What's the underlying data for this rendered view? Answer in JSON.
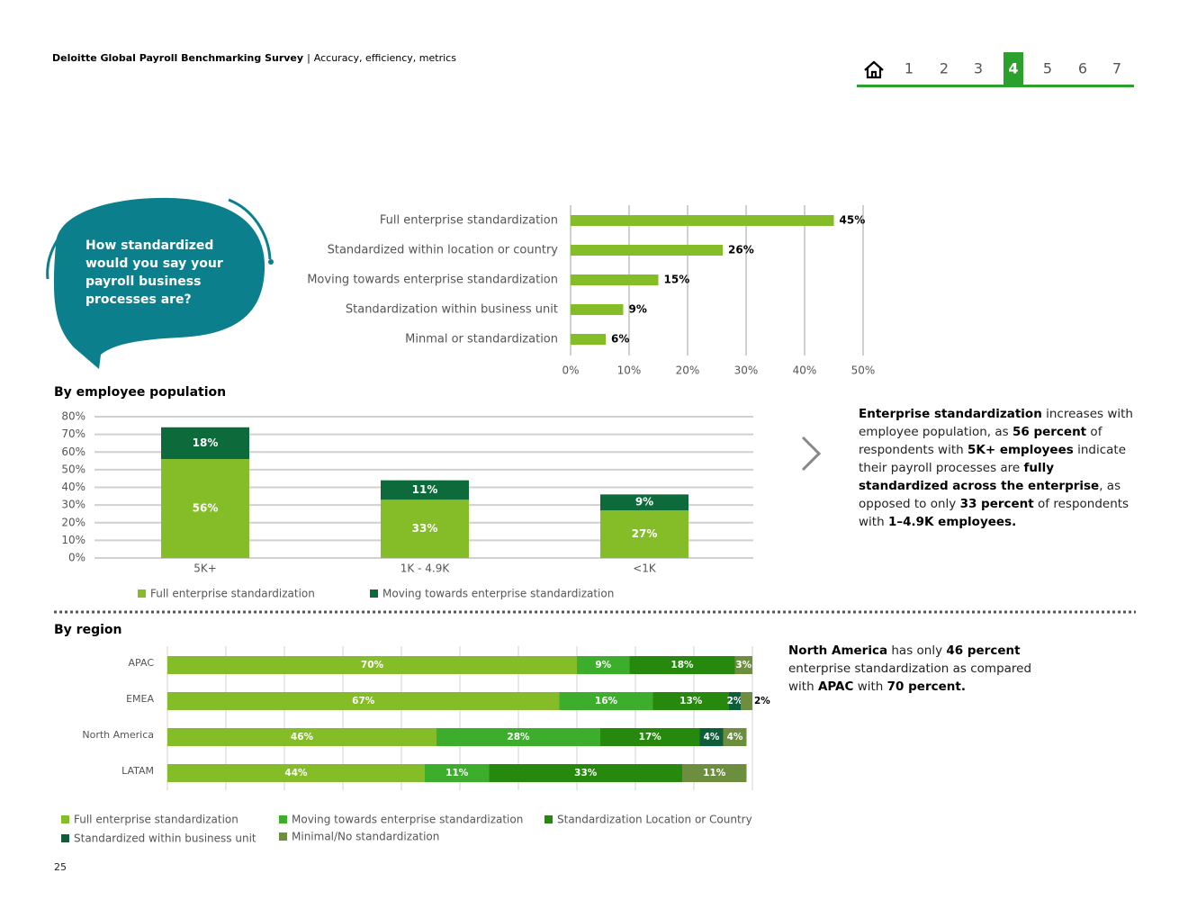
{
  "header": {
    "title": "Deloitte Global Payroll Benchmarking Survey",
    "separator": "|",
    "subtitle": "Accuracy, efficiency, metrics"
  },
  "nav": {
    "items": [
      "1",
      "2",
      "3",
      "4",
      "5",
      "6",
      "7"
    ],
    "active": "4"
  },
  "question": "How standardized would you say your payroll business processes are?",
  "chart_data": [
    {
      "type": "bar",
      "orientation": "horizontal",
      "categories": [
        "Full enterprise standardization",
        "Standardized within location or country",
        "Moving towards enterprise standardization",
        "Standardization within business unit",
        "Minmal or standardization"
      ],
      "values": [
        45,
        26,
        15,
        9,
        6
      ],
      "value_labels": [
        "45%",
        "26%",
        "15%",
        "9%",
        "6%"
      ],
      "color": "#84bd27",
      "xlim": [
        0,
        50
      ],
      "xticks": [
        {
          "value": 0,
          "label": "0%"
        },
        {
          "value": 10,
          "label": "10%"
        },
        {
          "value": 20,
          "label": "20%"
        },
        {
          "value": 30,
          "label": "30%"
        },
        {
          "value": 40,
          "label": "40%"
        },
        {
          "value": 50,
          "label": "50%"
        }
      ],
      "grid": true
    },
    {
      "type": "stacked_bar",
      "orientation": "vertical",
      "title": "By employee population",
      "categories": [
        "5K+",
        "1K - 4.9K",
        "<1K"
      ],
      "series": [
        {
          "name": "Full enterprise standardization",
          "color": "#84bd27",
          "values": [
            56,
            33,
            27
          ],
          "value_labels": [
            "56%",
            "33%",
            "27%"
          ]
        },
        {
          "name": "Moving towards enterprise standardization",
          "color": "#0d6b3b",
          "values": [
            18,
            11,
            9
          ],
          "value_labels": [
            "18%",
            "11%",
            "9%"
          ]
        }
      ],
      "ylim": [
        0,
        80
      ],
      "yticks": [
        {
          "value": 0,
          "label": "0%"
        },
        {
          "value": 10,
          "label": "10%"
        },
        {
          "value": 20,
          "label": "20%"
        },
        {
          "value": 30,
          "label": "30%"
        },
        {
          "value": 40,
          "label": "40%"
        },
        {
          "value": 50,
          "label": "50%"
        },
        {
          "value": 60,
          "label": "60%"
        },
        {
          "value": 70,
          "label": "70%"
        },
        {
          "value": 80,
          "label": "80%"
        }
      ],
      "grid": true
    },
    {
      "type": "stacked_bar",
      "orientation": "horizontal",
      "title": "By region",
      "categories": [
        "APAC",
        "EMEA",
        "North America",
        "LATAM"
      ],
      "series": [
        {
          "name": "Full enterprise standardization",
          "color": "#84bd27",
          "values": [
            70,
            67,
            46,
            44
          ],
          "value_labels": [
            "70%",
            "67%",
            "46%",
            "44%"
          ]
        },
        {
          "name": "Moving towards enterprise standardization",
          "color": "#3dae2b",
          "values": [
            9,
            16,
            28,
            11
          ],
          "value_labels": [
            "9%",
            "16%",
            "28%",
            "11%"
          ]
        },
        {
          "name": "Standardization Location or Country",
          "color": "#26890d",
          "values": [
            18,
            13,
            17,
            33
          ],
          "value_labels": [
            "18%",
            "13%",
            "17%",
            "33%"
          ]
        },
        {
          "name": "Standardized within business unit",
          "color": "#0f5e3a",
          "values": [
            null,
            2,
            4,
            null
          ],
          "value_labels": [
            null,
            "2%",
            "4%",
            null
          ]
        },
        {
          "name": "Minimal/No standardization",
          "color": "#6d8d3f",
          "values": [
            3,
            2,
            4,
            11
          ],
          "value_labels": [
            "3%",
            "2%",
            "4%",
            "11%"
          ]
        }
      ],
      "xlim": [
        0,
        100
      ],
      "xticks": [
        0,
        10,
        20,
        30,
        40,
        50,
        60,
        70,
        80,
        90,
        100
      ],
      "grid": true
    }
  ],
  "insights": [
    [
      {
        "text": "Enterprise standardization",
        "bold": true
      },
      {
        "text": " increases with employee population, as "
      },
      {
        "text": "56 percent",
        "bold": true
      },
      {
        "text": " of respondents with "
      },
      {
        "text": "5K+ employees",
        "bold": true
      },
      {
        "text": " indicate their payroll processes are "
      },
      {
        "text": "fully standardized across the enterprise",
        "bold": true
      },
      {
        "text": ", as opposed to only "
      },
      {
        "text": "33 percent",
        "bold": true
      },
      {
        "text": " of respondents with "
      },
      {
        "text": "1–4.9K employees.",
        "bold": true
      }
    ],
    [
      {
        "text": "North America",
        "bold": true
      },
      {
        "text": " has only "
      },
      {
        "text": "46 percent",
        "bold": true
      },
      {
        "text": " enterprise standardization as compared with "
      },
      {
        "text": "APAC",
        "bold": true
      },
      {
        "text": " with "
      },
      {
        "text": "70 percent.",
        "bold": true
      }
    ]
  ],
  "page_number": "25"
}
